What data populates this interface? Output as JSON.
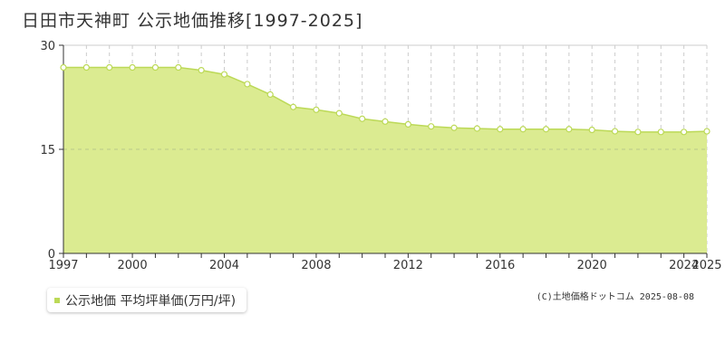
{
  "title": "日田市天神町 公示地価推移[1997-2025]",
  "legend": {
    "label": "公示地価 平均坪単価(万円/坪)"
  },
  "copyright": "(C)土地価格ドットコム 2025-08-08",
  "colors": {
    "area_fill": "#dbeb91",
    "line": "#bcd957",
    "marker_fill": "#ffffff",
    "grid": "#cccccc",
    "axis": "#333333",
    "legend_swatch": "#bcd957"
  },
  "chart_data": {
    "type": "area",
    "x": [
      1997,
      1998,
      1999,
      2000,
      2001,
      2002,
      2003,
      2004,
      2005,
      2006,
      2007,
      2008,
      2009,
      2010,
      2011,
      2012,
      2013,
      2014,
      2015,
      2016,
      2017,
      2018,
      2019,
      2020,
      2021,
      2022,
      2023,
      2024,
      2025
    ],
    "series": [
      {
        "name": "公示地価 平均坪単価(万円/坪)",
        "values": [
          26.8,
          26.8,
          26.8,
          26.8,
          26.8,
          26.8,
          26.4,
          25.8,
          24.4,
          22.9,
          21.1,
          20.7,
          20.2,
          19.4,
          19.0,
          18.6,
          18.3,
          18.1,
          18.0,
          17.9,
          17.9,
          17.9,
          17.9,
          17.8,
          17.6,
          17.5,
          17.5,
          17.5,
          17.6
        ]
      }
    ],
    "xlim": [
      1997,
      2025
    ],
    "ylim": [
      0,
      30
    ],
    "x_ticks": [
      "1997",
      "2000",
      "2004",
      "2008",
      "2012",
      "2016",
      "2020",
      "2024",
      "2025"
    ],
    "y_ticks": [
      "0",
      "15",
      "30"
    ],
    "grid": true,
    "legend_position": "bottom-left"
  }
}
